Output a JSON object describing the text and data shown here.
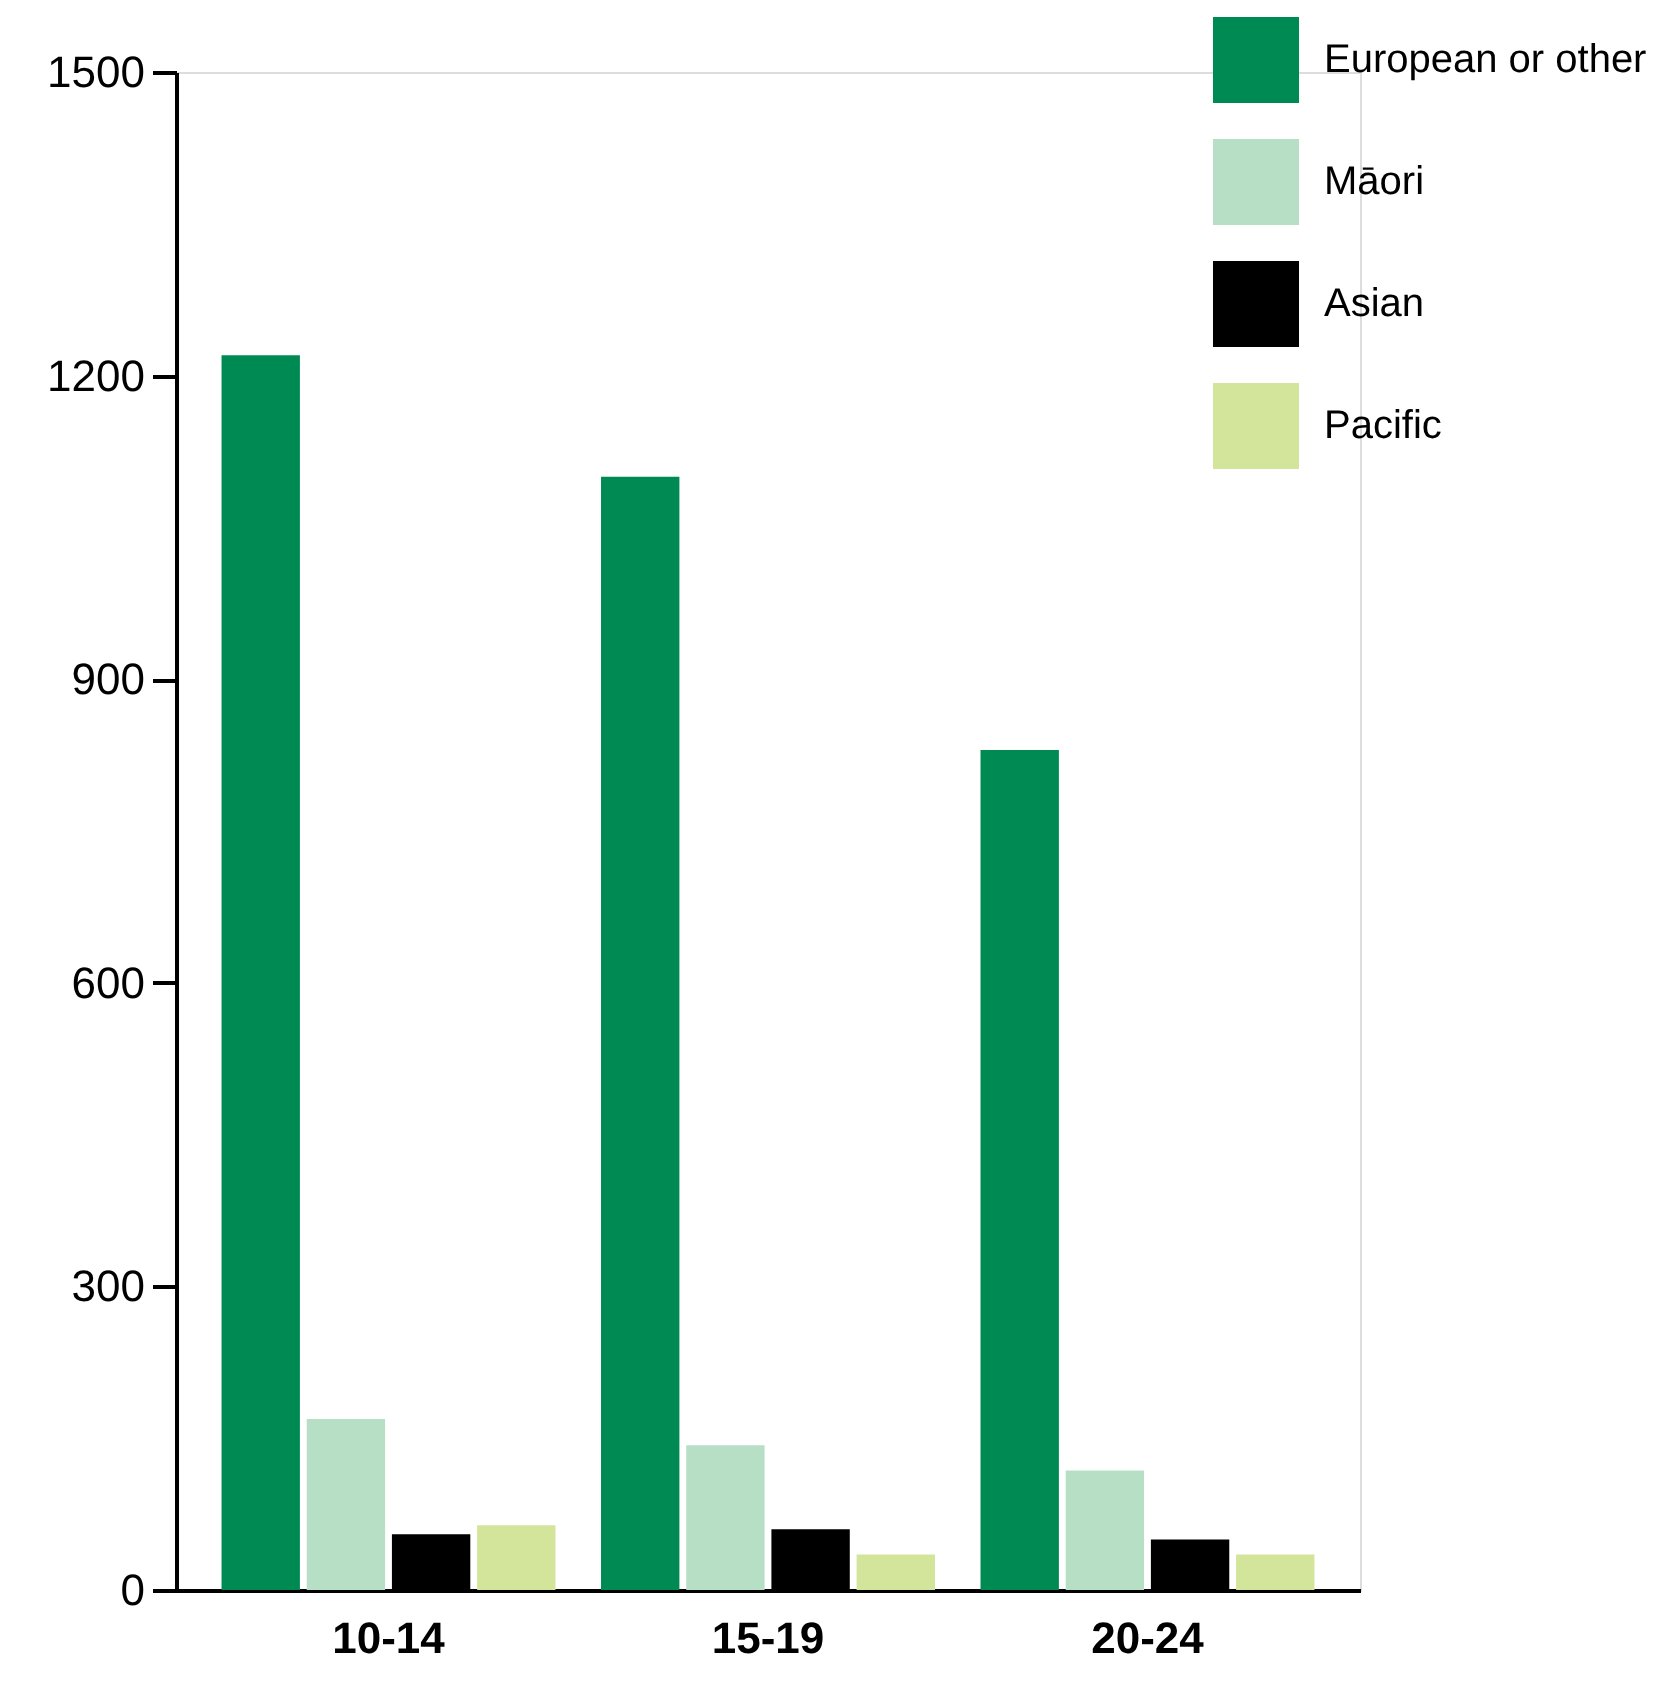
{
  "chart_data": {
    "type": "bar",
    "categories": [
      "10-14",
      "15-19",
      "20-24"
    ],
    "series": [
      {
        "name": "European or other",
        "color": "#008a53",
        "values": [
          1220,
          1100,
          830
        ]
      },
      {
        "name": "Māori",
        "color": "#b7dfc6",
        "values": [
          169,
          143,
          118
        ]
      },
      {
        "name": "Asian",
        "color": "#000000",
        "values": [
          55,
          60,
          50
        ]
      },
      {
        "name": "Pacific",
        "color": "#d3e59b",
        "values": [
          64,
          35,
          35
        ]
      }
    ],
    "ylim": [
      0,
      1500
    ],
    "yticks": [
      0,
      300,
      600,
      900,
      1200,
      1500
    ],
    "grid": false,
    "legend": "top right"
  }
}
